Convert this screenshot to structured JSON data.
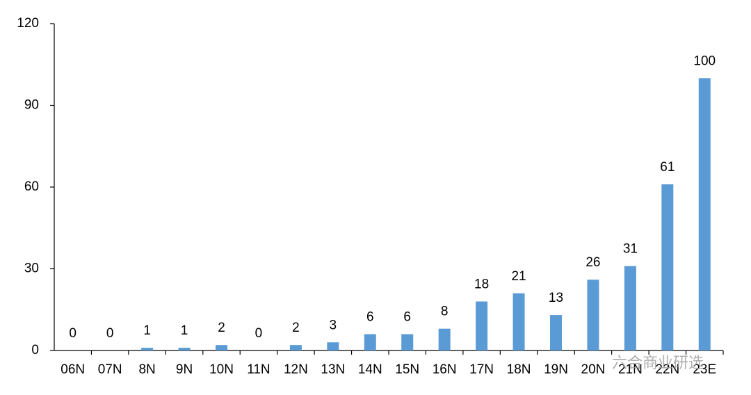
{
  "chart_data": {
    "type": "bar",
    "categories": [
      "06N",
      "07N",
      "8N",
      "9N",
      "10N",
      "11N",
      "12N",
      "13N",
      "14N",
      "15N",
      "16N",
      "17N",
      "18N",
      "19N",
      "20N",
      "21N",
      "22N",
      "23E"
    ],
    "values": [
      0,
      0,
      1,
      1,
      2,
      0,
      2,
      3,
      6,
      6,
      8,
      18,
      21,
      13,
      26,
      31,
      61,
      100
    ],
    "color": "#5b9bd5",
    "ylim": [
      0,
      120
    ],
    "yticks": [
      0,
      30,
      60,
      90,
      120
    ],
    "grid": false,
    "watermark": "六合商业研选"
  }
}
